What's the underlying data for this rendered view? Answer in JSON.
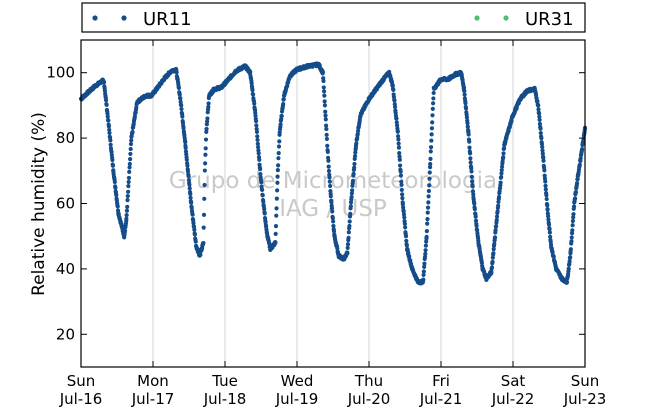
{
  "chart_data": {
    "type": "scatter",
    "ylabel": "Relative humidity (%)",
    "xlabel": "",
    "ylim": [
      10,
      110
    ],
    "xlim": [
      0,
      7
    ],
    "x_unit": "days",
    "y_ticks": [
      20,
      40,
      60,
      80,
      100
    ],
    "x_ticks": [
      {
        "x": 0,
        "day": "Sun",
        "date": "Jul-16"
      },
      {
        "x": 1,
        "day": "Mon",
        "date": "Jul-17"
      },
      {
        "x": 2,
        "day": "Tue",
        "date": "Jul-18"
      },
      {
        "x": 3,
        "day": "Wed",
        "date": "Jul-19"
      },
      {
        "x": 4,
        "day": "Thu",
        "date": "Jul-20"
      },
      {
        "x": 5,
        "day": "Fri",
        "date": "Jul-21"
      },
      {
        "x": 6,
        "day": "Sat",
        "date": "Jul-22"
      },
      {
        "x": 7,
        "day": "Sun",
        "date": "Jul-23"
      }
    ],
    "grid": "vertical",
    "legend_placement": "top",
    "watermark": [
      "Grupo de Micrometeorologia",
      "IAG / USP"
    ],
    "series": [
      {
        "name": "UR11",
        "color": "#154c8a",
        "keypoints": [
          [
            0.0,
            92
          ],
          [
            0.1,
            94
          ],
          [
            0.2,
            96
          ],
          [
            0.3,
            97.5
          ],
          [
            0.32,
            97
          ],
          [
            0.38,
            85
          ],
          [
            0.45,
            70
          ],
          [
            0.52,
            57
          ],
          [
            0.6,
            50
          ],
          [
            0.63,
            55
          ],
          [
            0.7,
            80
          ],
          [
            0.78,
            91
          ],
          [
            0.9,
            93
          ],
          [
            0.98,
            93
          ],
          [
            1.05,
            95
          ],
          [
            1.15,
            98
          ],
          [
            1.25,
            100.5
          ],
          [
            1.32,
            101
          ],
          [
            1.38,
            92
          ],
          [
            1.45,
            78
          ],
          [
            1.53,
            60
          ],
          [
            1.6,
            47
          ],
          [
            1.65,
            44
          ],
          [
            1.7,
            48
          ],
          [
            1.72,
            70
          ],
          [
            1.74,
            82
          ],
          [
            1.78,
            93
          ],
          [
            1.85,
            95
          ],
          [
            1.95,
            95.5
          ],
          [
            2.05,
            98
          ],
          [
            2.15,
            100.5
          ],
          [
            2.28,
            102
          ],
          [
            2.35,
            100
          ],
          [
            2.42,
            88
          ],
          [
            2.5,
            67
          ],
          [
            2.58,
            51
          ],
          [
            2.63,
            46
          ],
          [
            2.7,
            48
          ],
          [
            2.73,
            68
          ],
          [
            2.76,
            82
          ],
          [
            2.82,
            93
          ],
          [
            2.9,
            99
          ],
          [
            3.0,
            101
          ],
          [
            3.15,
            102
          ],
          [
            3.3,
            102.5
          ],
          [
            3.36,
            100
          ],
          [
            3.42,
            78
          ],
          [
            3.47,
            62
          ],
          [
            3.52,
            50
          ],
          [
            3.58,
            44
          ],
          [
            3.65,
            43
          ],
          [
            3.7,
            45
          ],
          [
            3.75,
            60
          ],
          [
            3.82,
            78
          ],
          [
            3.88,
            87
          ],
          [
            4.0,
            92
          ],
          [
            4.1,
            95
          ],
          [
            4.2,
            98
          ],
          [
            4.28,
            100
          ],
          [
            4.33,
            96
          ],
          [
            4.4,
            82
          ],
          [
            4.47,
            60
          ],
          [
            4.53,
            46
          ],
          [
            4.6,
            40
          ],
          [
            4.68,
            36
          ],
          [
            4.75,
            36
          ],
          [
            4.8,
            50
          ],
          [
            4.85,
            72
          ],
          [
            4.9,
            95
          ],
          [
            5.0,
            98
          ],
          [
            5.1,
            98
          ],
          [
            5.2,
            99.5
          ],
          [
            5.28,
            100
          ],
          [
            5.32,
            95
          ],
          [
            5.38,
            82
          ],
          [
            5.45,
            62
          ],
          [
            5.52,
            48
          ],
          [
            5.58,
            40
          ],
          [
            5.63,
            37
          ],
          [
            5.7,
            39
          ],
          [
            5.75,
            50
          ],
          [
            5.82,
            65
          ],
          [
            5.88,
            78
          ],
          [
            6.0,
            87
          ],
          [
            6.1,
            92
          ],
          [
            6.2,
            94.5
          ],
          [
            6.3,
            95
          ],
          [
            6.35,
            90
          ],
          [
            6.42,
            74
          ],
          [
            6.48,
            58
          ],
          [
            6.53,
            47
          ],
          [
            6.6,
            40
          ],
          [
            6.68,
            37
          ],
          [
            6.75,
            36
          ],
          [
            6.8,
            45
          ],
          [
            6.85,
            60
          ],
          [
            6.9,
            68
          ],
          [
            7.0,
            83
          ]
        ]
      },
      {
        "name": "UR31",
        "color": "#4dbf6f",
        "keypoints": []
      }
    ]
  }
}
